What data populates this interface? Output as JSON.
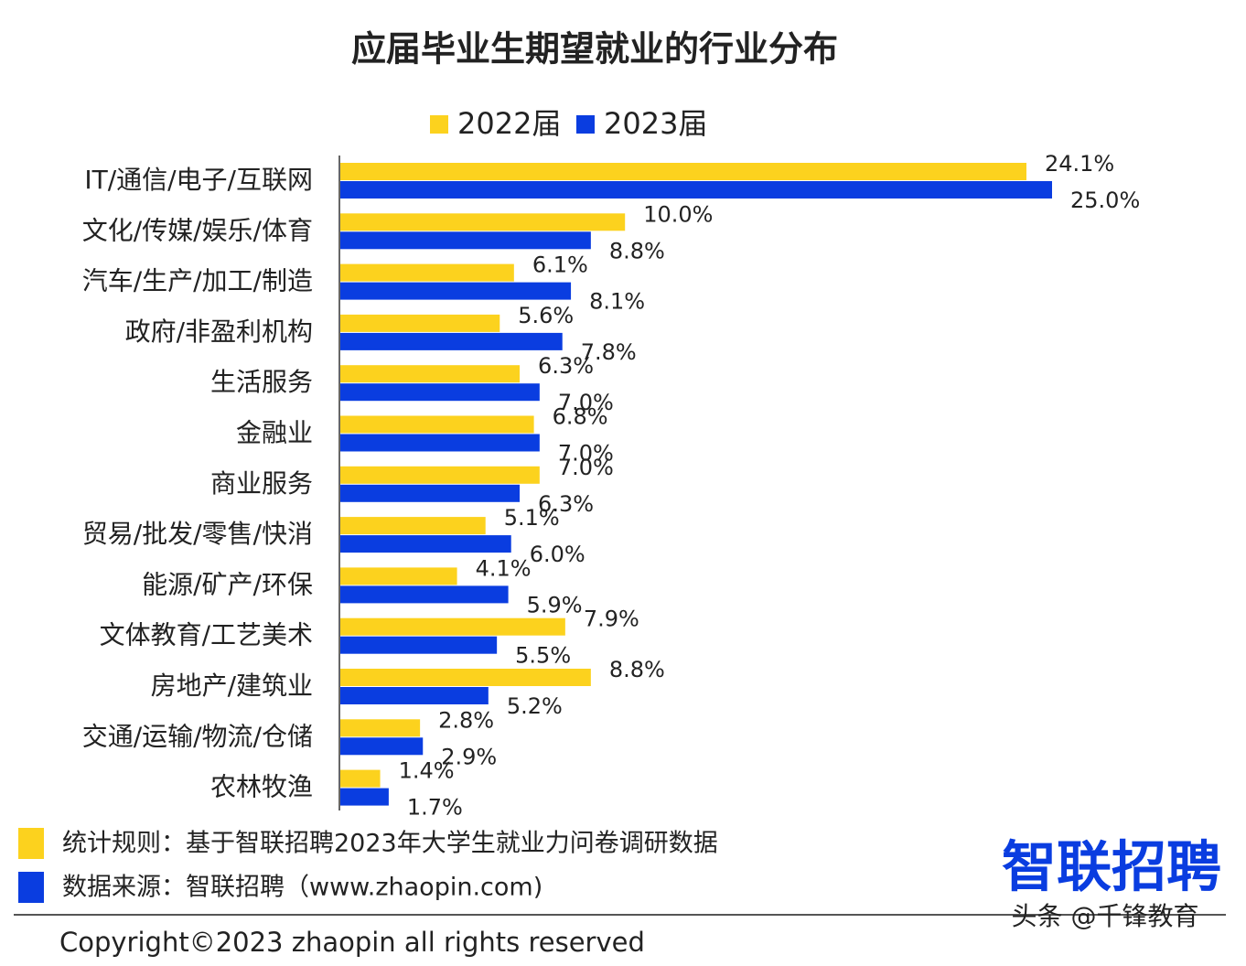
{
  "chart_data": {
    "type": "bar",
    "orientation": "horizontal",
    "title": "应届毕业生期望就业的行业分布",
    "categories": [
      "IT/通信/电子/互联网",
      "文化/传媒/娱乐/体育",
      "汽车/生产/加工/制造",
      "政府/非盈利机构",
      "生活服务",
      "金融业",
      "商业服务",
      "贸易/批发/零售/快消",
      "能源/矿产/环保",
      "文体教育/工艺美术",
      "房地产/建筑业",
      "交通/运输/物流/仓储",
      "农林牧渔"
    ],
    "series": [
      {
        "name": "2022届",
        "color": "#fcd21e",
        "values": [
          24.1,
          10.0,
          6.1,
          5.6,
          6.3,
          6.8,
          7.0,
          5.1,
          4.1,
          7.9,
          8.8,
          2.8,
          1.4
        ],
        "value_labels": [
          "24.1%",
          "10.0%",
          "6.1%",
          "5.6%",
          "6.3%",
          "6.8%",
          "7.0%",
          "5.1%",
          "4.1%",
          "7.9%",
          "8.8%",
          "2.8%",
          "1.4%"
        ]
      },
      {
        "name": "2023届",
        "color": "#0a3de0",
        "values": [
          25.0,
          8.8,
          8.1,
          7.8,
          7.0,
          7.0,
          6.3,
          6.0,
          5.9,
          5.5,
          5.2,
          2.9,
          1.7
        ],
        "value_labels": [
          "25.0%",
          "8.8%",
          "8.1%",
          "7.8%",
          "7.0%",
          "7.0%",
          "6.3%",
          "6.0%",
          "5.9%",
          "5.5%",
          "5.2%",
          "2.9%",
          "1.7%"
        ]
      }
    ],
    "legend": "top",
    "footnotes": [
      "统计规则：基于智联招聘2023年大学生就业力问卷调研数据",
      "数据来源：智联招聘（www.zhaopin.com)"
    ],
    "copyright": "Copyright©2023 zhaopin all rights reserved",
    "logo": "智联招聘",
    "watermark": "头条 @千锋教育"
  }
}
